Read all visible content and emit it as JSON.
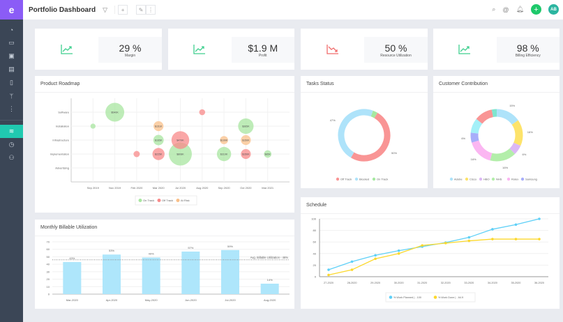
{
  "app": {
    "logo": "e",
    "title": "Portfolio Dashboard",
    "avatar": "AB"
  },
  "sidebar": {
    "icons": [
      "dashboard-icon",
      "briefcase-icon",
      "clipboard-icon",
      "images-icon",
      "document-icon",
      "branch-icon",
      "more-icon"
    ],
    "bottom_icons": [
      "chart-icon",
      "clock-icon",
      "user-settings-icon"
    ],
    "active": "chart-icon"
  },
  "kpis": [
    {
      "value": "29 %",
      "label": "Margin",
      "trend": "up",
      "color": "#3ecf8e"
    },
    {
      "value": "$1.9 M",
      "label": "Profit",
      "trend": "up",
      "color": "#3ecf8e"
    },
    {
      "value": "50 %",
      "label": "Resource Utilization",
      "trend": "down",
      "color": "#f06b6b"
    },
    {
      "value": "98 %",
      "label": "Billing Efficiency",
      "trend": "up",
      "color": "#3ecf8e"
    }
  ],
  "cards": {
    "roadmap": "Product Roadmap",
    "billable": "Monthly Billable Utilization",
    "tasks": "Tasks Status",
    "customer": "Customer Contribution",
    "schedule": "Schedule"
  },
  "chart_data": [
    {
      "id": "roadmap",
      "type": "scatter",
      "title": "Product Roadmap",
      "x_categories": [
        "Sep 2019",
        "Nov 2019",
        "Feb 2020",
        "Mar 2020",
        "Jul 2020",
        "Aug 2020",
        "Sep 2020",
        "Oct 2020",
        "Mar 2021"
      ],
      "y_categories": [
        "Software",
        "Installation",
        "Infrastructure",
        "Implementation",
        "Advertising"
      ],
      "legend": [
        {
          "name": "On Track",
          "color": "#a8e6a0"
        },
        {
          "name": "Off Track",
          "color": "#f88a8a"
        },
        {
          "name": "At Risk",
          "color": "#f9c08a"
        }
      ],
      "points": [
        {
          "x": "Sep 2019",
          "y": "Installation",
          "value": 40,
          "status": "On Track",
          "label": ""
        },
        {
          "x": "Nov 2019",
          "y": "Software",
          "value": 540,
          "status": "On Track",
          "label": "$540K"
        },
        {
          "x": "Feb 2020",
          "y": "Implementation",
          "value": 60,
          "status": "Off Track",
          "label": ""
        },
        {
          "x": "Mar 2020",
          "y": "Installation",
          "value": 151,
          "status": "At Risk",
          "label": "$151K"
        },
        {
          "x": "Mar 2020",
          "y": "Infrastructure",
          "value": 165,
          "status": "On Track",
          "label": "$165K"
        },
        {
          "x": "Mar 2020",
          "y": "Implementation",
          "value": 225,
          "status": "Off Track",
          "label": "$225K"
        },
        {
          "x": "Jul 2020",
          "y": "Implementation",
          "value": 808,
          "status": "On Track",
          "label": "$808K"
        },
        {
          "x": "Jul 2020",
          "y": "Infrastructure",
          "value": 479,
          "status": "Off Track",
          "label": "$479K"
        },
        {
          "x": "Aug 2020",
          "y": "Software",
          "value": 55,
          "status": "Off Track",
          "label": ""
        },
        {
          "x": "Sep 2020",
          "y": "Infrastructure",
          "value": 100,
          "status": "At Risk",
          "label": "$100K"
        },
        {
          "x": "Sep 2020",
          "y": "Implementation",
          "value": 310,
          "status": "On Track",
          "label": "$310K"
        },
        {
          "x": "Oct 2020",
          "y": "Installation",
          "value": 365,
          "status": "On Track",
          "label": "$365K"
        },
        {
          "x": "Oct 2020",
          "y": "Infrastructure",
          "value": 150,
          "status": "At Risk",
          "label": "$150K"
        },
        {
          "x": "Oct 2020",
          "y": "Implementation",
          "value": 150,
          "status": "Off Track",
          "label": "$150K"
        },
        {
          "x": "Mar 2021",
          "y": "Implementation",
          "value": 85,
          "status": "On Track",
          "label": "$85K"
        }
      ]
    },
    {
      "id": "billable",
      "type": "bar",
      "title": "Monthly Billable Utilization",
      "categories": [
        "Mar-2020",
        "Apr-2020",
        "May-2020",
        "Jun-2020",
        "Jul-2020",
        "Aug-2020"
      ],
      "values": [
        43,
        53,
        49,
        57,
        59,
        14
      ],
      "labels": [
        "43%",
        "53%",
        "49%",
        "57%",
        "59%",
        "14%"
      ],
      "ylim": [
        0,
        70
      ],
      "yticks": [
        0,
        10,
        20,
        30,
        40,
        50,
        60,
        70
      ],
      "color": "#aee6fb",
      "average": {
        "value": 46,
        "label": "Avg. Billable Utilization - 46%"
      }
    },
    {
      "id": "tasks",
      "type": "pie",
      "title": "Tasks Status",
      "slices": [
        {
          "name": "Off Track",
          "value": 50,
          "label": "50%",
          "color": "#f99595"
        },
        {
          "name": "Blocked",
          "value": 47,
          "label": "47%",
          "color": "#aee3fa"
        },
        {
          "name": "On Track",
          "value": 3,
          "label": "",
          "color": "#a6e8a0"
        }
      ]
    },
    {
      "id": "customer",
      "type": "pie",
      "title": "Customer Contribution",
      "slices": [
        {
          "name": "Adobe",
          "value": 15,
          "label": "15%",
          "color": "#aee3fa"
        },
        {
          "name": "Cisco",
          "value": 16,
          "label": "16%",
          "color": "#fde36a"
        },
        {
          "name": "HBO",
          "value": 6,
          "label": "6%",
          "color": "#dcb8f5"
        },
        {
          "name": "NHS",
          "value": 16,
          "label": "16%",
          "color": "#b3eeaa"
        },
        {
          "name": "Rolex",
          "value": 16,
          "label": "16%",
          "color": "#fbb6f2"
        },
        {
          "name": "Samsung",
          "value": 6,
          "label": "6%",
          "color": "#a7aefa"
        },
        {
          "name": null,
          "value": 9,
          "label": "",
          "color": "#a3f0f8"
        },
        {
          "name": null,
          "value": 11,
          "label": "",
          "color": "#f99595"
        },
        {
          "name": null,
          "value": 3,
          "label": "",
          "color": "#7fe6cf"
        }
      ]
    },
    {
      "id": "schedule",
      "type": "line",
      "title": "Schedule",
      "x": [
        "27-2020",
        "28-2020",
        "29-2020",
        "30-2020",
        "31-2020",
        "32-2020",
        "33-2020",
        "34-2020",
        "35-2020",
        "36-2020"
      ],
      "ylim": [
        0,
        100
      ],
      "yticks": [
        0,
        20,
        40,
        60,
        80,
        100
      ],
      "series": [
        {
          "name": "% Work Planned | - 100",
          "color": "#5fd0f7",
          "values": [
            12,
            26,
            37,
            45,
            52,
            59,
            68,
            82,
            90,
            100
          ]
        },
        {
          "name": "% Work Done | - 64.9",
          "color": "#fcd82c",
          "values": [
            3,
            12,
            31,
            40,
            54,
            58,
            62,
            65,
            65,
            65
          ]
        }
      ]
    }
  ]
}
